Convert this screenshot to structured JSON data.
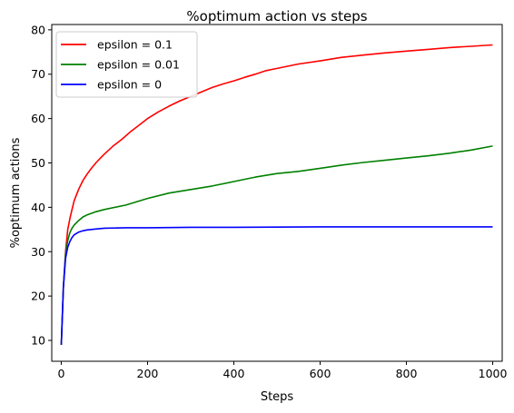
{
  "chart_data": {
    "type": "line",
    "title": "%optimum action vs steps",
    "xlabel": "Steps",
    "ylabel": "%optimum actions",
    "xlim": [
      -22,
      1022
    ],
    "ylim": [
      5.3,
      81.2
    ],
    "xticks": [
      0,
      200,
      400,
      600,
      800,
      1000
    ],
    "yticks": [
      10,
      20,
      30,
      40,
      50,
      60,
      70,
      80
    ],
    "grid": false,
    "legend_position": "upper-left",
    "series": [
      {
        "name": "epsilon = 0.1",
        "color": "#ff0000",
        "x": [
          0,
          5,
          10,
          15,
          20,
          25,
          30,
          40,
          50,
          60,
          70,
          80,
          90,
          100,
          120,
          140,
          160,
          180,
          200,
          225,
          250,
          275,
          300,
          325,
          350,
          375,
          400,
          425,
          450,
          475,
          500,
          550,
          600,
          650,
          700,
          750,
          800,
          850,
          900,
          950,
          1000
        ],
        "values": [
          9.0,
          22.0,
          30.0,
          35.0,
          37.5,
          39.5,
          41.5,
          44.0,
          46.0,
          47.5,
          48.8,
          50.0,
          51.0,
          52.0,
          53.8,
          55.3,
          57.0,
          58.5,
          60.0,
          61.5,
          62.8,
          64.0,
          65.0,
          66.0,
          67.0,
          67.8,
          68.5,
          69.3,
          70.0,
          70.8,
          71.3,
          72.3,
          73.0,
          73.8,
          74.3,
          74.8,
          75.2,
          75.6,
          76.0,
          76.3,
          76.6
        ]
      },
      {
        "name": "epsilon = 0.01",
        "color": "#008000",
        "x": [
          0,
          5,
          10,
          15,
          20,
          25,
          30,
          40,
          50,
          60,
          80,
          100,
          150,
          200,
          250,
          300,
          350,
          400,
          450,
          500,
          550,
          600,
          650,
          700,
          750,
          800,
          850,
          900,
          950,
          1000
        ],
        "values": [
          9.0,
          22.0,
          29.5,
          32.5,
          34.3,
          35.3,
          36.0,
          37.0,
          37.8,
          38.3,
          39.0,
          39.5,
          40.5,
          42.0,
          43.2,
          44.0,
          44.8,
          45.8,
          46.8,
          47.6,
          48.1,
          48.8,
          49.5,
          50.1,
          50.6,
          51.1,
          51.6,
          52.2,
          52.9,
          53.8
        ]
      },
      {
        "name": "epsilon = 0",
        "color": "#0000ff",
        "x": [
          0,
          5,
          10,
          15,
          20,
          25,
          30,
          40,
          50,
          60,
          80,
          100,
          150,
          200,
          300,
          400,
          600,
          800,
          1000
        ],
        "values": [
          9.0,
          22.0,
          28.5,
          31.0,
          32.3,
          33.2,
          33.8,
          34.4,
          34.7,
          34.9,
          35.1,
          35.3,
          35.4,
          35.4,
          35.5,
          35.5,
          35.6,
          35.6,
          35.6
        ]
      }
    ]
  }
}
